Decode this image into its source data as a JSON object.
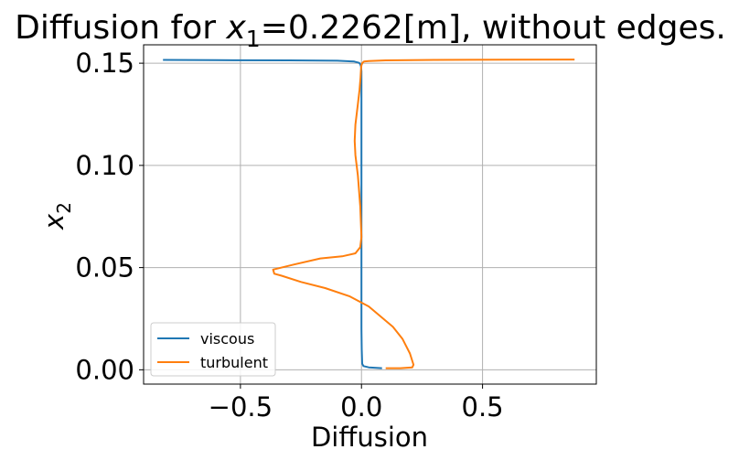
{
  "chart_data": {
    "type": "line",
    "title": {
      "prefix": "Diffusion for ",
      "var": "x",
      "sub": "1",
      "suffix": "=0.2262[m], without edges."
    },
    "xlabel": "Diffusion",
    "ylabel": {
      "var": "x",
      "sub": "2"
    },
    "xlim": [
      -0.9,
      0.97
    ],
    "ylim": [
      -0.007,
      0.159
    ],
    "xticks": [
      -0.5,
      0.0,
      0.5
    ],
    "xtick_labels": [
      "−0.5",
      "0.0",
      "0.5"
    ],
    "yticks": [
      0.0,
      0.05,
      0.1,
      0.15
    ],
    "ytick_labels": [
      "0.00",
      "0.05",
      "0.10",
      "0.15"
    ],
    "grid": true,
    "legend_position": "lower-left",
    "series": [
      {
        "name": "viscous",
        "color": "#1f77b4",
        "x": [
          0.085,
          0.03,
          0.008,
          0.003,
          0.002,
          0.001,
          0.0,
          0.0,
          0.0,
          0.0,
          0.0,
          0.0,
          0.0,
          0.0,
          0.0,
          0.0,
          0.0,
          0.0,
          0.0,
          0.0,
          0.0,
          -0.002,
          -0.005,
          -0.01,
          -0.03,
          -0.1,
          -0.3,
          -0.6,
          -0.82
        ],
        "y": [
          0.0008,
          0.0012,
          0.0018,
          0.003,
          0.006,
          0.01,
          0.02,
          0.03,
          0.04,
          0.045,
          0.05,
          0.06,
          0.07,
          0.08,
          0.09,
          0.1,
          0.11,
          0.12,
          0.13,
          0.14,
          0.146,
          0.1485,
          0.1495,
          0.1502,
          0.1508,
          0.1512,
          0.1514,
          0.1515,
          0.1516
        ]
      },
      {
        "name": "turbulent",
        "color": "#ff7f0e",
        "x": [
          0.1,
          0.16,
          0.21,
          0.215,
          0.2,
          0.17,
          0.13,
          0.08,
          0.03,
          -0.05,
          -0.15,
          -0.25,
          -0.33,
          -0.36,
          -0.365,
          -0.28,
          -0.17,
          -0.08,
          -0.025,
          -0.005,
          0.0,
          -0.005,
          -0.015,
          -0.025,
          -0.028,
          -0.025,
          -0.015,
          -0.008,
          -0.004,
          -0.002,
          0.0,
          0.004,
          0.01,
          0.03,
          0.1,
          0.3,
          0.6,
          0.88
        ],
        "y": [
          0.0008,
          0.0008,
          0.0012,
          0.0025,
          0.008,
          0.015,
          0.021,
          0.026,
          0.031,
          0.036,
          0.04,
          0.043,
          0.046,
          0.047,
          0.049,
          0.0515,
          0.0545,
          0.0555,
          0.057,
          0.06,
          0.065,
          0.08,
          0.095,
          0.105,
          0.112,
          0.12,
          0.13,
          0.137,
          0.143,
          0.147,
          0.149,
          0.1502,
          0.1508,
          0.1511,
          0.1514,
          0.1516,
          0.1517,
          0.1518
        ]
      }
    ]
  }
}
